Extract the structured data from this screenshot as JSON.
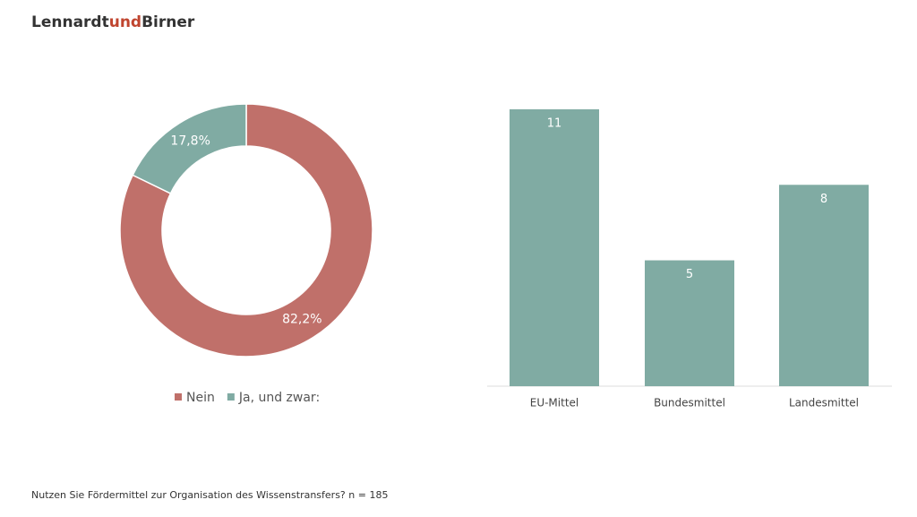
{
  "header": {
    "logo": [
      "Lennardt",
      "und",
      "Birner"
    ]
  },
  "chart_data": [
    {
      "type": "pie",
      "categories": [
        "Nein",
        "Ja, und zwar:"
      ],
      "values": [
        82.2,
        17.8
      ],
      "value_labels": [
        "82,2%",
        "17,8%"
      ],
      "colors": [
        "#c0706a",
        "#80aba3"
      ],
      "donut": true,
      "legend": "bottom"
    },
    {
      "type": "bar",
      "categories": [
        "EU-Mittel",
        "Bundesmittel",
        "Landesmittel"
      ],
      "values": [
        11,
        5,
        8
      ],
      "color": "#80aba3",
      "data_labels": true
    }
  ],
  "footnote": "Nutzen Sie Fördermittel zur Organisation des Wissenstransfers? n = 185"
}
